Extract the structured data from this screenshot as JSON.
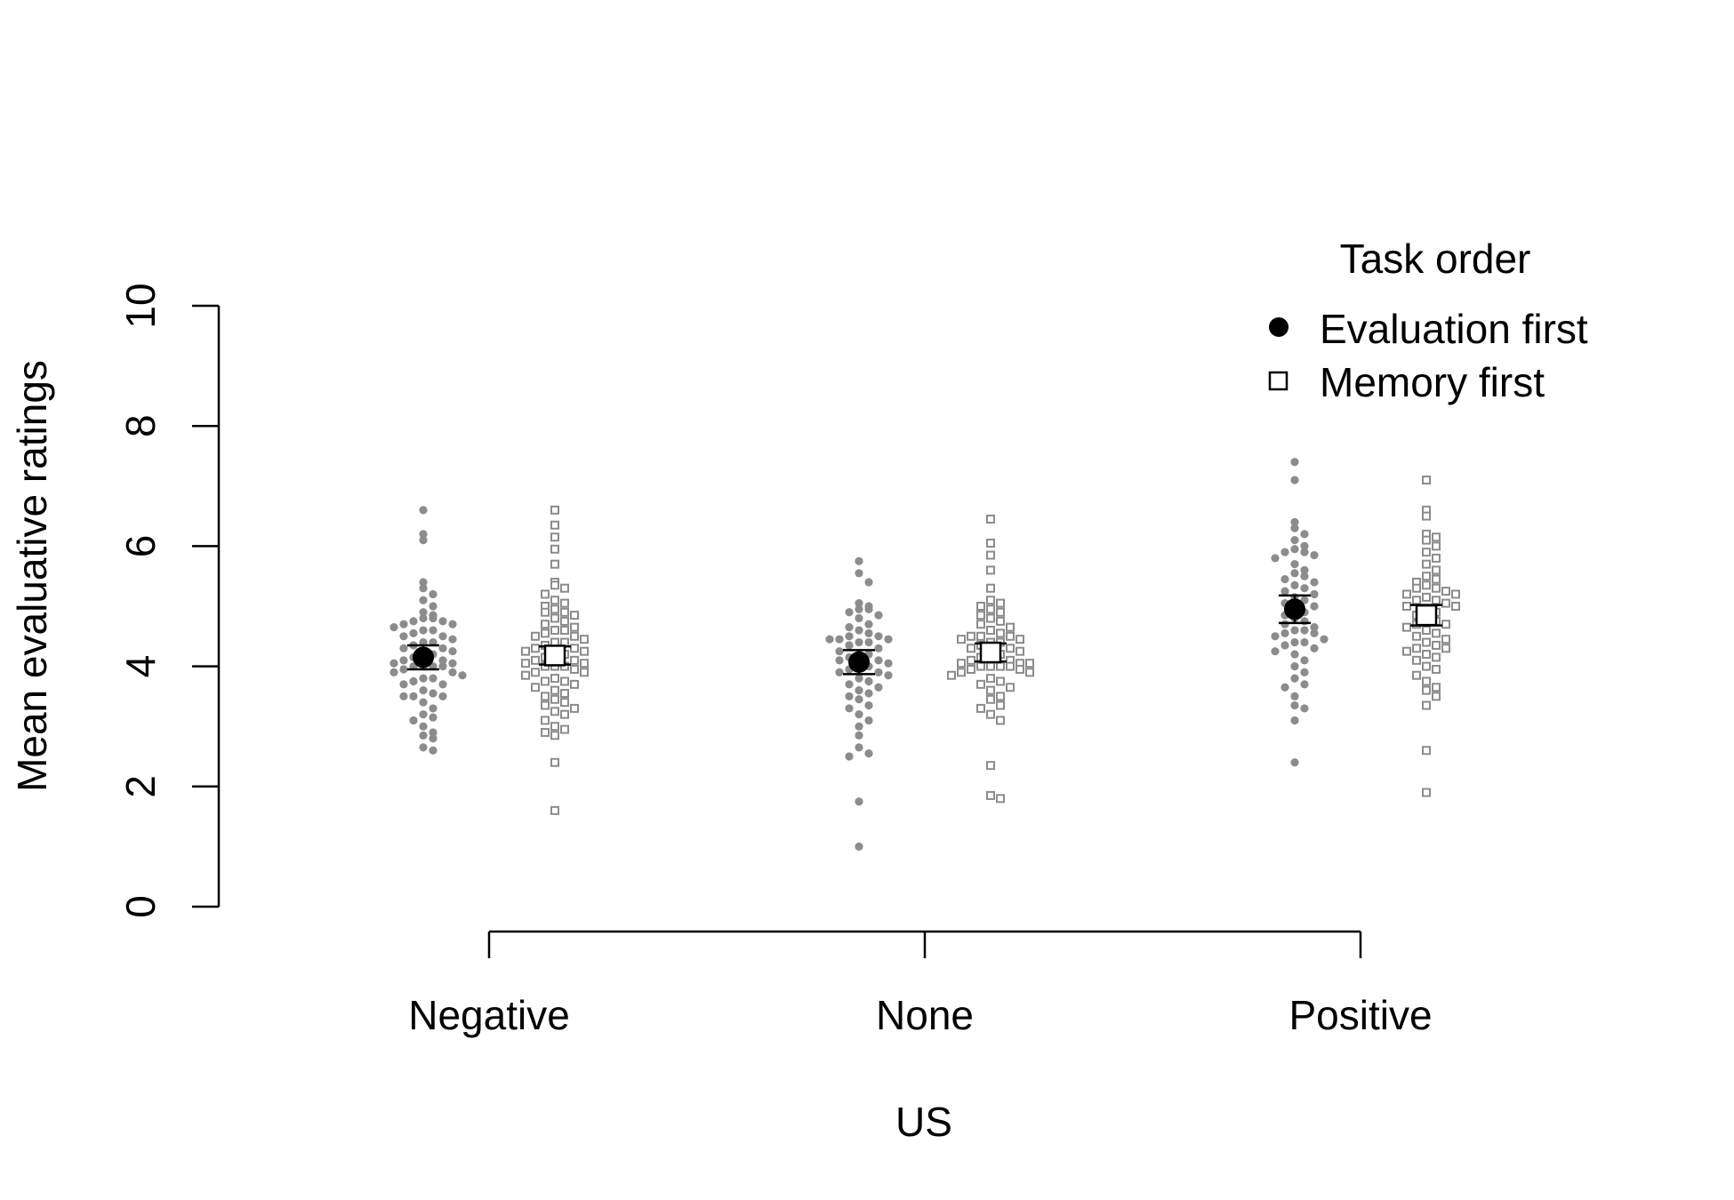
{
  "chart_data": {
    "type": "scatter",
    "xlabel": "US",
    "ylabel": "Mean evaluative ratings",
    "categories": [
      "Negative",
      "None",
      "Positive"
    ],
    "ylim": [
      0,
      10
    ],
    "yticks": [
      0,
      2,
      4,
      6,
      8,
      10
    ],
    "grid": false,
    "legend": {
      "title": "Task order",
      "placement": "top-right",
      "entries": [
        "Evaluation first",
        "Memory first"
      ]
    },
    "series": [
      {
        "name": "Evaluation first",
        "marker": "filled-circle",
        "color": "#000000",
        "raw_color": "#8c8c8c",
        "means": [
          4.15,
          4.07,
          4.95
        ],
        "ci": [
          [
            3.95,
            4.35
          ],
          [
            3.87,
            4.27
          ],
          [
            4.72,
            5.18
          ]
        ],
        "raw": [
          [
            6.6,
            6.2,
            6.1,
            5.4,
            5.3,
            5.2,
            5.1,
            5.0,
            4.9,
            4.85,
            4.8,
            4.8,
            4.75,
            4.75,
            4.7,
            4.7,
            4.65,
            4.6,
            4.6,
            4.55,
            4.5,
            4.5,
            4.45,
            4.4,
            4.4,
            4.35,
            4.3,
            4.3,
            4.25,
            4.2,
            4.2,
            4.15,
            4.1,
            4.1,
            4.05,
            4.05,
            4.0,
            4.0,
            4.0,
            4.0,
            3.95,
            3.9,
            3.9,
            3.85,
            3.8,
            3.8,
            3.75,
            3.7,
            3.7,
            3.6,
            3.55,
            3.5,
            3.5,
            3.5,
            3.4,
            3.3,
            3.2,
            3.15,
            3.1,
            3.0,
            2.9,
            2.85,
            2.8,
            2.65,
            2.6
          ],
          [
            5.75,
            5.55,
            5.4,
            5.05,
            5.0,
            4.95,
            4.95,
            4.9,
            4.85,
            4.8,
            4.7,
            4.65,
            4.6,
            4.55,
            4.5,
            4.5,
            4.45,
            4.45,
            4.45,
            4.4,
            4.4,
            4.35,
            4.3,
            4.25,
            4.2,
            4.2,
            4.15,
            4.1,
            4.1,
            4.05,
            4.0,
            4.0,
            3.95,
            3.9,
            3.9,
            3.85,
            3.8,
            3.75,
            3.7,
            3.65,
            3.6,
            3.55,
            3.5,
            3.45,
            3.35,
            3.3,
            3.2,
            3.1,
            3.0,
            2.85,
            2.65,
            2.55,
            2.5,
            1.75,
            1.0
          ],
          [
            7.4,
            7.1,
            6.4,
            6.3,
            6.2,
            6.1,
            6.0,
            5.95,
            5.9,
            5.9,
            5.85,
            5.8,
            5.7,
            5.6,
            5.55,
            5.5,
            5.45,
            5.4,
            5.35,
            5.3,
            5.25,
            5.2,
            5.15,
            5.1,
            5.05,
            5.0,
            4.95,
            4.9,
            4.85,
            4.8,
            4.75,
            4.7,
            4.65,
            4.6,
            4.6,
            4.55,
            4.55,
            4.5,
            4.45,
            4.4,
            4.4,
            4.35,
            4.3,
            4.25,
            4.2,
            4.1,
            4.0,
            3.9,
            3.8,
            3.7,
            3.65,
            3.5,
            3.35,
            3.3,
            3.1,
            2.4
          ]
        ]
      },
      {
        "name": "Memory first",
        "marker": "open-square",
        "color": "#000000",
        "raw_color": "#8c8c8c",
        "means": [
          4.18,
          4.23,
          4.85
        ],
        "ci": [
          [
            4.03,
            4.33
          ],
          [
            4.08,
            4.38
          ],
          [
            4.68,
            5.02
          ]
        ],
        "raw": [
          [
            6.6,
            6.35,
            6.15,
            5.95,
            5.7,
            5.4,
            5.35,
            5.3,
            5.2,
            5.1,
            5.05,
            5.0,
            4.95,
            4.9,
            4.9,
            4.85,
            4.8,
            4.75,
            4.7,
            4.65,
            4.6,
            4.6,
            4.55,
            4.5,
            4.5,
            4.45,
            4.4,
            4.4,
            4.35,
            4.3,
            4.3,
            4.25,
            4.25,
            4.2,
            4.2,
            4.15,
            4.1,
            4.1,
            4.05,
            4.05,
            4.0,
            4.0,
            4.0,
            3.95,
            3.9,
            3.9,
            3.85,
            3.8,
            3.75,
            3.75,
            3.7,
            3.65,
            3.6,
            3.55,
            3.5,
            3.45,
            3.4,
            3.35,
            3.3,
            3.25,
            3.2,
            3.1,
            3.0,
            2.95,
            2.9,
            2.85,
            2.4,
            1.6
          ],
          [
            6.45,
            6.05,
            5.85,
            5.6,
            5.3,
            5.1,
            5.05,
            5.0,
            4.95,
            4.9,
            4.85,
            4.8,
            4.75,
            4.7,
            4.65,
            4.6,
            4.55,
            4.5,
            4.5,
            4.5,
            4.45,
            4.45,
            4.4,
            4.4,
            4.35,
            4.3,
            4.3,
            4.25,
            4.2,
            4.2,
            4.15,
            4.1,
            4.1,
            4.05,
            4.05,
            4.05,
            4.0,
            4.0,
            4.0,
            4.0,
            3.95,
            3.95,
            3.9,
            3.9,
            3.85,
            3.8,
            3.75,
            3.7,
            3.65,
            3.6,
            3.5,
            3.45,
            3.35,
            3.3,
            3.2,
            3.1,
            2.35,
            1.85,
            1.8
          ],
          [
            7.1,
            6.6,
            6.5,
            6.2,
            6.15,
            6.1,
            6.0,
            5.9,
            5.8,
            5.7,
            5.6,
            5.5,
            5.45,
            5.4,
            5.35,
            5.3,
            5.3,
            5.25,
            5.2,
            5.2,
            5.15,
            5.1,
            5.1,
            5.05,
            5.0,
            5.0,
            4.95,
            4.9,
            4.85,
            4.8,
            4.75,
            4.7,
            4.7,
            4.65,
            4.6,
            4.55,
            4.5,
            4.45,
            4.4,
            4.35,
            4.3,
            4.3,
            4.25,
            4.2,
            4.15,
            4.1,
            4.0,
            3.95,
            3.85,
            3.75,
            3.65,
            3.6,
            3.5,
            3.35,
            2.6,
            1.9
          ]
        ]
      }
    ]
  }
}
